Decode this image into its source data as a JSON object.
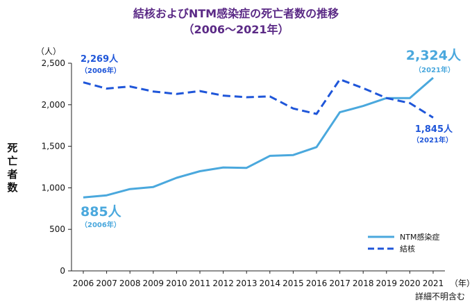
{
  "chart_data": {
    "type": "line",
    "title": "結核およびNTM感染症の死亡者数の推移",
    "subtitle": "（2006〜2021年）",
    "ylabel": "死亡者数",
    "yunit": "（人）",
    "xunit": "（年）",
    "note": "詳細不明含む",
    "ylim": [
      0,
      2500
    ],
    "yticks": [
      0,
      500,
      1000,
      1500,
      2000,
      2500
    ],
    "ytick_labels": [
      "0",
      "500",
      "1,000",
      "1,500",
      "2,000",
      "2,500"
    ],
    "categories": [
      "2006",
      "2007",
      "2008",
      "2009",
      "2010",
      "2011",
      "2012",
      "2013",
      "2014",
      "2015",
      "2016",
      "2017",
      "2018",
      "2019",
      "2020",
      "2021"
    ],
    "series": [
      {
        "name": "NTM感染症",
        "color": "#4aa8dd",
        "style": "solid",
        "values": [
          885,
          910,
          985,
          1010,
          1120,
          1200,
          1245,
          1240,
          1385,
          1395,
          1490,
          1910,
          1985,
          2080,
          2080,
          2324
        ]
      },
      {
        "name": "結核",
        "color": "#1f56d9",
        "style": "dashed",
        "values": [
          2269,
          2195,
          2220,
          2160,
          2130,
          2165,
          2110,
          2090,
          2100,
          1955,
          1890,
          2305,
          2200,
          2080,
          2020,
          1845
        ]
      }
    ],
    "annotations": {
      "ntm_start_value": "885人",
      "ntm_start_year": "（2006年）",
      "ntm_end_value": "2,324人",
      "ntm_end_year": "（2021年）",
      "tb_start_value": "2,269人",
      "tb_start_year": "（2006年）",
      "tb_end_value": "1,845人",
      "tb_end_year": "（2021年）"
    },
    "legend_position": "bottom-right",
    "grid": false
  }
}
